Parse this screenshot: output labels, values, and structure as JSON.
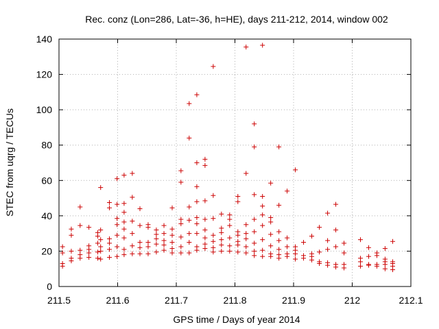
{
  "chart_data": {
    "type": "scatter",
    "title": "Rec. conz (Lon=286, Lat=-36, h=HE), days 211-212, 2014, window 002",
    "xlabel": "GPS time / Days of year 2014",
    "ylabel": "STEC from uqrg / TECUs",
    "xlim": [
      211.5,
      212.1
    ],
    "ylim": [
      0,
      140
    ],
    "xticks": [
      211.5,
      211.6,
      211.7,
      211.8,
      211.9,
      212,
      212.1
    ],
    "xtick_labels": [
      "211.5",
      "211.6",
      "211.7",
      "211.8",
      "211.9",
      "212",
      "212.1"
    ],
    "yticks": [
      0,
      20,
      40,
      60,
      80,
      100,
      120,
      140
    ],
    "ytick_labels": [
      "0",
      "20",
      "40",
      "60",
      "80",
      "100",
      "120",
      "140"
    ],
    "grid": true,
    "marker": "+",
    "color": "#cc0000",
    "series": [
      {
        "name": "STEC",
        "points": [
          [
            211.506,
            11.5
          ],
          [
            211.506,
            13
          ],
          [
            211.506,
            19
          ],
          [
            211.506,
            22.5
          ],
          [
            211.521,
            14.5
          ],
          [
            211.521,
            16
          ],
          [
            211.521,
            20
          ],
          [
            211.521,
            29
          ],
          [
            211.521,
            32.5
          ],
          [
            211.536,
            16
          ],
          [
            211.536,
            18
          ],
          [
            211.536,
            20.5
          ],
          [
            211.536,
            34.5
          ],
          [
            211.536,
            45
          ],
          [
            211.551,
            16.5
          ],
          [
            211.551,
            19
          ],
          [
            211.551,
            21
          ],
          [
            211.551,
            23
          ],
          [
            211.551,
            33.5
          ],
          [
            211.566,
            16
          ],
          [
            211.566,
            19.5
          ],
          [
            211.566,
            24.5
          ],
          [
            211.566,
            28.5
          ],
          [
            211.566,
            30.5
          ],
          [
            211.571,
            15.5
          ],
          [
            211.571,
            20
          ],
          [
            211.571,
            22.5
          ],
          [
            211.571,
            26.5
          ],
          [
            211.571,
            32
          ],
          [
            211.571,
            56
          ],
          [
            211.586,
            16.5
          ],
          [
            211.586,
            21
          ],
          [
            211.586,
            24.5
          ],
          [
            211.586,
            27
          ],
          [
            211.586,
            44.5
          ],
          [
            211.586,
            47.5
          ],
          [
            211.599,
            17
          ],
          [
            211.599,
            22.5
          ],
          [
            211.599,
            29
          ],
          [
            211.599,
            35
          ],
          [
            211.599,
            38.5
          ],
          [
            211.599,
            46.5
          ],
          [
            211.599,
            61
          ],
          [
            211.611,
            18
          ],
          [
            211.611,
            21
          ],
          [
            211.611,
            27.5
          ],
          [
            211.611,
            32.5
          ],
          [
            211.611,
            36.5
          ],
          [
            211.611,
            42
          ],
          [
            211.611,
            47
          ],
          [
            211.611,
            63
          ],
          [
            211.625,
            18.5
          ],
          [
            211.625,
            23
          ],
          [
            211.625,
            30
          ],
          [
            211.625,
            37
          ],
          [
            211.625,
            50.5
          ],
          [
            211.625,
            64
          ],
          [
            211.638,
            18.5
          ],
          [
            211.638,
            22
          ],
          [
            211.638,
            25
          ],
          [
            211.638,
            34.5
          ],
          [
            211.638,
            44
          ],
          [
            211.652,
            18.5
          ],
          [
            211.652,
            22.5
          ],
          [
            211.652,
            25
          ],
          [
            211.652,
            33.5
          ],
          [
            211.652,
            35
          ],
          [
            211.666,
            19.5
          ],
          [
            211.666,
            24
          ],
          [
            211.666,
            27
          ],
          [
            211.666,
            29.5
          ],
          [
            211.666,
            32
          ],
          [
            211.679,
            20.5
          ],
          [
            211.679,
            23.5
          ],
          [
            211.679,
            26
          ],
          [
            211.679,
            30
          ],
          [
            211.679,
            34.5
          ],
          [
            211.693,
            19
          ],
          [
            211.693,
            21.5
          ],
          [
            211.693,
            25
          ],
          [
            211.693,
            29
          ],
          [
            211.693,
            32.5
          ],
          [
            211.693,
            44.5
          ],
          [
            211.708,
            19
          ],
          [
            211.708,
            22.5
          ],
          [
            211.708,
            28
          ],
          [
            211.708,
            35.5
          ],
          [
            211.708,
            38
          ],
          [
            211.708,
            59
          ],
          [
            211.708,
            65.5
          ],
          [
            211.722,
            19
          ],
          [
            211.722,
            25
          ],
          [
            211.722,
            30
          ],
          [
            211.722,
            37.5
          ],
          [
            211.722,
            45
          ],
          [
            211.722,
            84
          ],
          [
            211.722,
            103.5
          ],
          [
            211.735,
            20.5
          ],
          [
            211.735,
            22.5
          ],
          [
            211.735,
            30
          ],
          [
            211.735,
            35.5
          ],
          [
            211.735,
            39
          ],
          [
            211.735,
            48
          ],
          [
            211.735,
            56.5
          ],
          [
            211.735,
            70
          ],
          [
            211.735,
            108.5
          ],
          [
            211.749,
            21.5
          ],
          [
            211.749,
            24
          ],
          [
            211.749,
            27.5
          ],
          [
            211.749,
            32
          ],
          [
            211.749,
            38
          ],
          [
            211.749,
            48.5
          ],
          [
            211.749,
            68.5
          ],
          [
            211.749,
            72
          ],
          [
            211.763,
            19.5
          ],
          [
            211.763,
            22
          ],
          [
            211.763,
            25.5
          ],
          [
            211.763,
            29
          ],
          [
            211.763,
            38.5
          ],
          [
            211.763,
            51.5
          ],
          [
            211.763,
            124.5
          ],
          [
            211.777,
            20
          ],
          [
            211.777,
            23.5
          ],
          [
            211.777,
            26.5
          ],
          [
            211.777,
            30.5
          ],
          [
            211.777,
            33
          ],
          [
            211.777,
            41
          ],
          [
            211.791,
            20
          ],
          [
            211.791,
            23
          ],
          [
            211.791,
            27.5
          ],
          [
            211.791,
            34.5
          ],
          [
            211.791,
            38
          ],
          [
            211.791,
            40.5
          ],
          [
            211.805,
            19.5
          ],
          [
            211.805,
            23.5
          ],
          [
            211.805,
            25.5
          ],
          [
            211.805,
            29
          ],
          [
            211.805,
            31
          ],
          [
            211.805,
            48
          ],
          [
            211.805,
            51
          ],
          [
            211.819,
            19
          ],
          [
            211.819,
            22.5
          ],
          [
            211.819,
            27
          ],
          [
            211.819,
            30
          ],
          [
            211.819,
            35
          ],
          [
            211.819,
            64
          ],
          [
            211.819,
            135.5
          ],
          [
            211.833,
            17.5
          ],
          [
            211.833,
            20
          ],
          [
            211.833,
            24.5
          ],
          [
            211.833,
            31
          ],
          [
            211.833,
            38
          ],
          [
            211.833,
            52
          ],
          [
            211.833,
            79
          ],
          [
            211.833,
            92
          ],
          [
            211.847,
            17
          ],
          [
            211.847,
            20.5
          ],
          [
            211.847,
            26.5
          ],
          [
            211.847,
            34.5
          ],
          [
            211.847,
            40.5
          ],
          [
            211.847,
            45.5
          ],
          [
            211.847,
            51
          ],
          [
            211.847,
            136.5
          ],
          [
            211.861,
            17
          ],
          [
            211.861,
            18.5
          ],
          [
            211.861,
            23
          ],
          [
            211.861,
            29.5
          ],
          [
            211.861,
            36.5
          ],
          [
            211.861,
            39
          ],
          [
            211.861,
            58.5
          ],
          [
            211.875,
            16
          ],
          [
            211.875,
            18
          ],
          [
            211.875,
            21
          ],
          [
            211.875,
            26
          ],
          [
            211.875,
            31
          ],
          [
            211.875,
            46
          ],
          [
            211.875,
            79
          ],
          [
            211.889,
            17
          ],
          [
            211.889,
            18.5
          ],
          [
            211.889,
            22.5
          ],
          [
            211.889,
            27.5
          ],
          [
            211.889,
            54
          ],
          [
            211.903,
            15.5
          ],
          [
            211.903,
            18.5
          ],
          [
            211.903,
            20.5
          ],
          [
            211.903,
            22.5
          ],
          [
            211.903,
            66
          ],
          [
            211.917,
            16
          ],
          [
            211.917,
            17.5
          ],
          [
            211.917,
            25
          ],
          [
            211.931,
            15
          ],
          [
            211.931,
            17
          ],
          [
            211.931,
            18.5
          ],
          [
            211.931,
            28.5
          ],
          [
            211.944,
            13
          ],
          [
            211.944,
            14
          ],
          [
            211.944,
            19.5
          ],
          [
            211.944,
            33.5
          ],
          [
            211.958,
            12
          ],
          [
            211.958,
            13.5
          ],
          [
            211.958,
            21
          ],
          [
            211.958,
            26
          ],
          [
            211.958,
            41.5
          ],
          [
            211.972,
            11
          ],
          [
            211.972,
            12.5
          ],
          [
            211.972,
            22.5
          ],
          [
            211.972,
            32
          ],
          [
            211.972,
            46.5
          ],
          [
            211.986,
            10.5
          ],
          [
            211.986,
            12.5
          ],
          [
            211.986,
            19
          ],
          [
            211.986,
            24.5
          ],
          [
            212.014,
            11.5
          ],
          [
            212.014,
            14
          ],
          [
            212.014,
            16
          ],
          [
            212.014,
            26.5
          ],
          [
            212.028,
            12
          ],
          [
            212.028,
            12.5
          ],
          [
            212.028,
            17
          ],
          [
            212.028,
            22
          ],
          [
            212.042,
            11.5
          ],
          [
            212.042,
            12.5
          ],
          [
            212.042,
            17.5
          ],
          [
            212.042,
            19
          ],
          [
            212.056,
            10
          ],
          [
            212.056,
            12.5
          ],
          [
            212.056,
            14
          ],
          [
            212.056,
            15.5
          ],
          [
            212.056,
            21.5
          ],
          [
            212.069,
            9.5
          ],
          [
            212.069,
            11.5
          ],
          [
            212.069,
            13
          ],
          [
            212.069,
            14
          ],
          [
            212.069,
            25.5
          ]
        ]
      }
    ]
  }
}
